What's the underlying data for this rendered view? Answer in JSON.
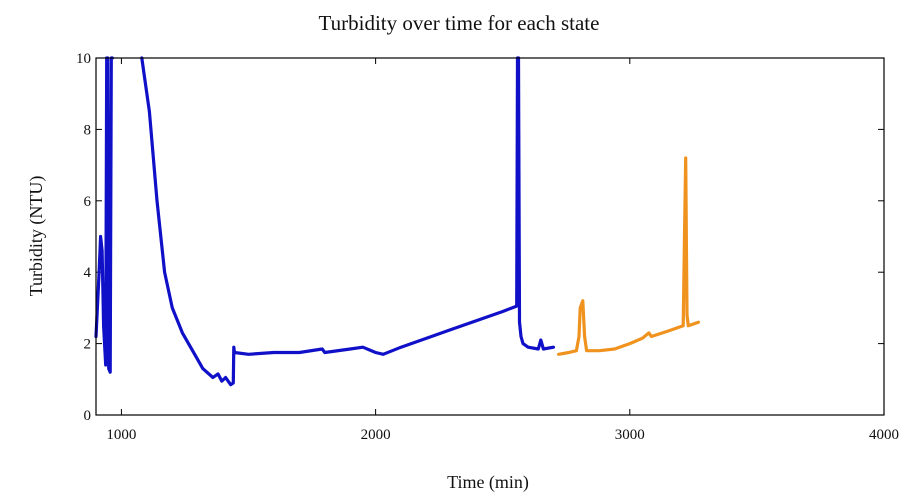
{
  "chart_data": {
    "type": "line",
    "title": "Turbidity over time for each state",
    "xlabel": "Time (min)",
    "ylabel": "Turbidity (NTU)",
    "xlim": [
      900,
      4000
    ],
    "ylim": [
      0,
      10
    ],
    "xticks": [
      1000,
      2000,
      3000,
      4000
    ],
    "yticks": [
      0,
      2,
      4,
      6,
      8,
      10
    ],
    "grid": false,
    "series": [
      {
        "color": "#1010c8",
        "points": [
          [
            900,
            2.2
          ],
          [
            912,
            4.0
          ],
          [
            918,
            5.0
          ],
          [
            924,
            4.6
          ],
          [
            930,
            2.5
          ],
          [
            938,
            1.4
          ],
          [
            942,
            10.0
          ],
          [
            946,
            10.0
          ],
          [
            950,
            1.3
          ],
          [
            956,
            1.2
          ],
          [
            960,
            10.0
          ],
          [
            964,
            10.0
          ],
          null,
          [
            1080,
            10.0
          ],
          [
            1110,
            8.5
          ],
          [
            1140,
            6.0
          ],
          [
            1170,
            4.0
          ],
          [
            1200,
            3.0
          ],
          [
            1240,
            2.3
          ],
          [
            1280,
            1.8
          ],
          [
            1320,
            1.3
          ],
          [
            1360,
            1.05
          ],
          [
            1380,
            1.15
          ],
          [
            1395,
            0.95
          ],
          [
            1410,
            1.05
          ],
          [
            1430,
            0.85
          ],
          [
            1440,
            0.9
          ],
          [
            1442,
            1.9
          ],
          [
            1445,
            1.75
          ],
          [
            1500,
            1.7
          ],
          [
            1600,
            1.75
          ],
          [
            1700,
            1.75
          ],
          [
            1790,
            1.85
          ],
          [
            1800,
            1.75
          ],
          [
            1900,
            1.85
          ],
          [
            1950,
            1.9
          ],
          [
            2000,
            1.75
          ],
          [
            2030,
            1.7
          ],
          [
            2100,
            1.9
          ],
          [
            2200,
            2.15
          ],
          [
            2300,
            2.4
          ],
          [
            2400,
            2.65
          ],
          [
            2500,
            2.9
          ],
          [
            2555,
            3.05
          ],
          [
            2558,
            10.0
          ],
          [
            2562,
            10.0
          ],
          [
            2566,
            2.6
          ],
          [
            2572,
            2.2
          ],
          [
            2580,
            2.0
          ],
          [
            2600,
            1.9
          ],
          [
            2640,
            1.85
          ],
          [
            2650,
            2.1
          ],
          [
            2660,
            1.85
          ],
          [
            2700,
            1.9
          ]
        ]
      },
      {
        "color": "#f0921e",
        "points": [
          [
            2720,
            1.7
          ],
          [
            2760,
            1.75
          ],
          [
            2790,
            1.8
          ],
          [
            2800,
            2.2
          ],
          [
            2805,
            3.0
          ],
          [
            2815,
            3.2
          ],
          [
            2822,
            2.2
          ],
          [
            2830,
            1.8
          ],
          [
            2880,
            1.8
          ],
          [
            2940,
            1.85
          ],
          [
            3000,
            2.0
          ],
          [
            3050,
            2.15
          ],
          [
            3075,
            2.3
          ],
          [
            3085,
            2.2
          ],
          [
            3150,
            2.35
          ],
          [
            3210,
            2.5
          ],
          [
            3215,
            5.0
          ],
          [
            3220,
            7.2
          ],
          [
            3225,
            2.8
          ],
          [
            3230,
            2.5
          ],
          [
            3270,
            2.6
          ]
        ]
      }
    ]
  }
}
